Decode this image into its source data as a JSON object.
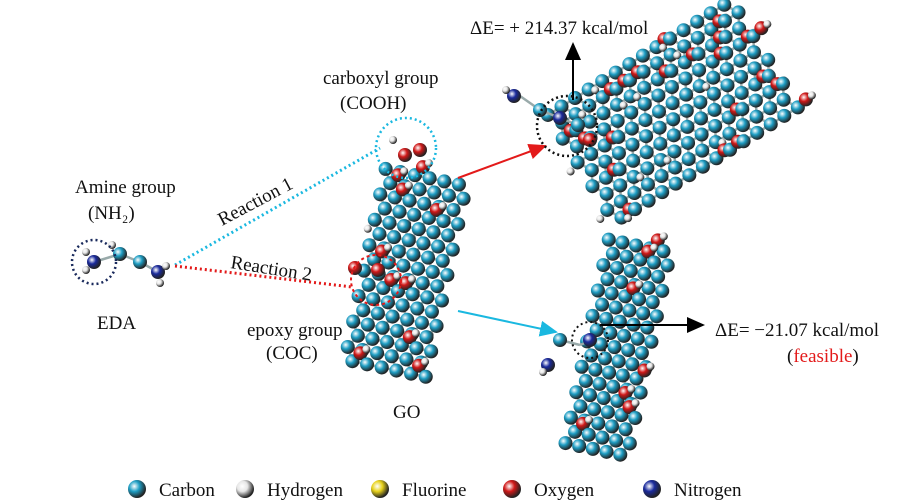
{
  "amine": {
    "title": "Amine group",
    "formula": "(NH₂)",
    "molecule": "EDA"
  },
  "reactions": [
    "Reaction 1",
    "Reaction 2"
  ],
  "carboxyl": {
    "title": "carboxyl group",
    "formula": "(COOH)"
  },
  "epoxy": {
    "title": "epoxy group",
    "formula": "(COC)"
  },
  "go_label": "GO",
  "product_1": {
    "energy": "ΔE= + 214.37 kcal/mol"
  },
  "product_2": {
    "energy": "ΔE= −21.07 kcal/mol",
    "note": [
      "(",
      "feasible",
      ")"
    ]
  },
  "legend": [
    {
      "name": "Carbon",
      "color": "#1e9ec4"
    },
    {
      "name": "Hydrogen",
      "color": "#e6e6e6"
    },
    {
      "name": "Fluorine",
      "color": "#e8d21a"
    },
    {
      "name": "Oxygen",
      "color": "#d01818"
    },
    {
      "name": "Nitrogen",
      "color": "#1a2a9c"
    }
  ]
}
